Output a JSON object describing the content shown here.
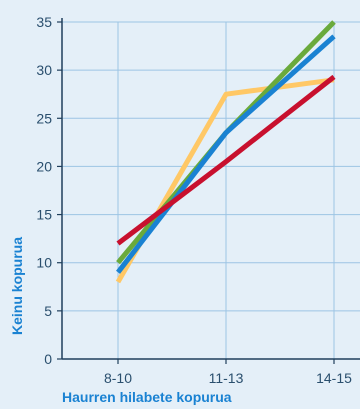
{
  "chart_data": {
    "type": "line",
    "categories": [
      "8-10",
      "11-13",
      "14-15"
    ],
    "series": [
      {
        "color": "#ffc866",
        "values": [
          8,
          27.5,
          29
        ]
      },
      {
        "color": "#6aaa3c",
        "values": [
          10,
          23.5,
          35
        ]
      },
      {
        "color": "#1a82d2",
        "values": [
          9,
          23.5,
          33.5
        ]
      },
      {
        "color": "#c8102e",
        "values": [
          12,
          20.5,
          29.3
        ]
      }
    ],
    "title": "",
    "xlabel": "Haurren hilabete kopurua",
    "ylabel": "Keinu kopurua",
    "ylim": [
      0,
      35
    ],
    "yticks": [
      0,
      5,
      10,
      15,
      20,
      25,
      30,
      35
    ],
    "grid": true,
    "axis_label_color": "#1a82d2",
    "grid_color": "#9cc4e4",
    "background_color": "#e4eff8"
  }
}
